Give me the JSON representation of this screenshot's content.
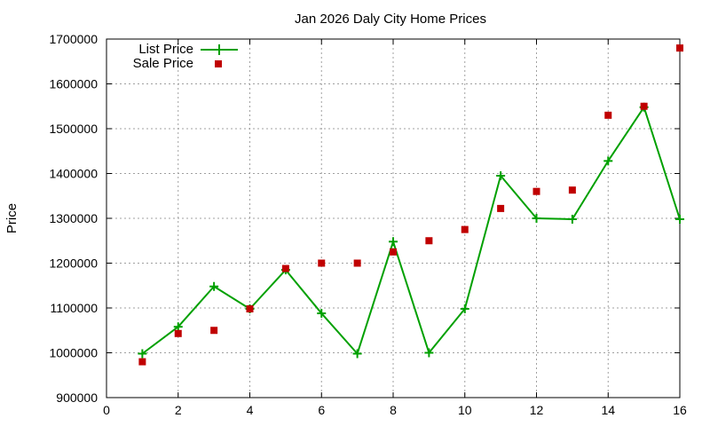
{
  "chart_data": {
    "type": "line",
    "title": "Jan 2026 Daly City Home Prices",
    "xlabel": "",
    "ylabel": "Price",
    "xlim": [
      0,
      16
    ],
    "ylim": [
      900000,
      1700000
    ],
    "xticks": [
      0,
      2,
      4,
      6,
      8,
      10,
      12,
      14,
      16
    ],
    "yticks": [
      900000,
      1000000,
      1100000,
      1200000,
      1300000,
      1400000,
      1500000,
      1600000,
      1700000
    ],
    "grid": true,
    "legend_position": "top-left",
    "series": [
      {
        "name": "List Price",
        "style": "linespoints",
        "marker": "plus",
        "color": "#00a000",
        "x": [
          1,
          2,
          3,
          4,
          5,
          6,
          7,
          8,
          9,
          10,
          11,
          12,
          13,
          14,
          15,
          16
        ],
        "values": [
          998000,
          1058000,
          1148000,
          1098000,
          1185000,
          1088000,
          998000,
          1248000,
          1000000,
          1098000,
          1395000,
          1300000,
          1298000,
          1428000,
          1548000,
          1298000
        ]
      },
      {
        "name": "Sale Price",
        "style": "points",
        "marker": "square",
        "color": "#c00000",
        "x": [
          1,
          2,
          3,
          4,
          5,
          6,
          7,
          8,
          9,
          10,
          11,
          12,
          13,
          14,
          15,
          16
        ],
        "values": [
          980000,
          1043000,
          1050000,
          1098000,
          1188000,
          1200000,
          1200000,
          1225000,
          1250000,
          1275000,
          1322000,
          1360000,
          1363000,
          1530000,
          1550000,
          1680000
        ]
      }
    ]
  }
}
